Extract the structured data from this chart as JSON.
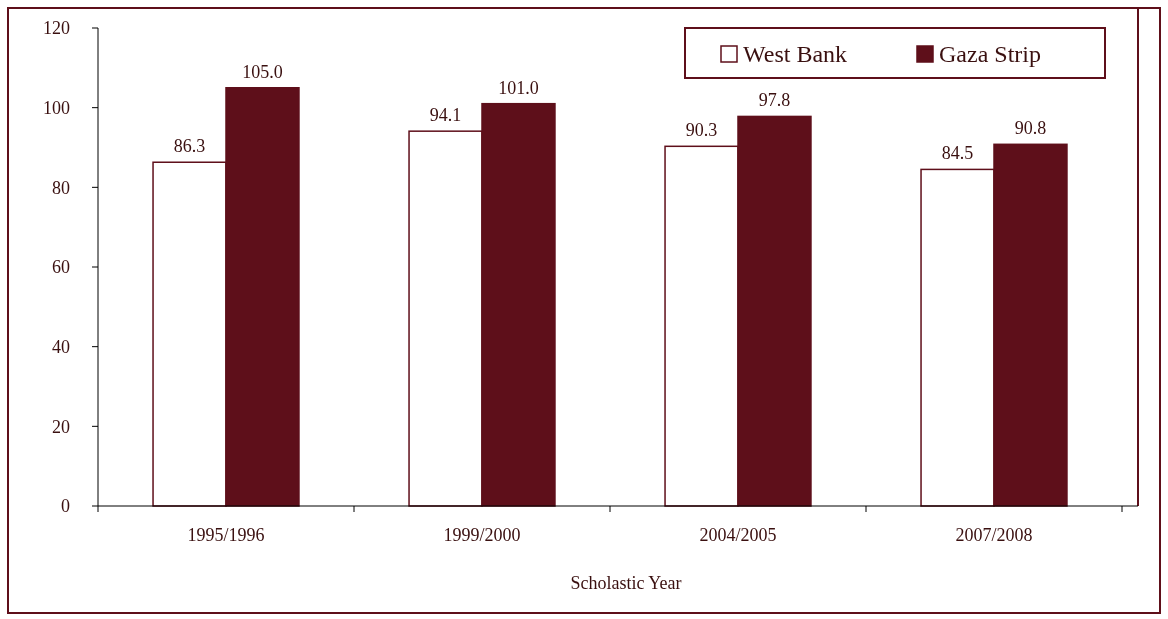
{
  "chart_data": {
    "type": "bar",
    "xlabel": "Scholastic Year",
    "categories": [
      "1995/1996",
      "1999/2000",
      "2004/2005",
      "2007/2008"
    ],
    "series": [
      {
        "name": "West Bank",
        "color": "#ffffff",
        "values": [
          86.3,
          94.1,
          90.3,
          84.5
        ],
        "value_labels": [
          "86.3",
          "94.1",
          "90.3",
          "84.5"
        ]
      },
      {
        "name": "Gaza Strip",
        "color": "#5e0f1a",
        "values": [
          105.0,
          101.0,
          97.8,
          90.8
        ],
        "value_labels": [
          "105.0",
          "101.0",
          "97.8",
          "90.8"
        ]
      }
    ],
    "ylim": [
      0,
      120
    ],
    "yticks": [
      0,
      20,
      40,
      60,
      80,
      100,
      120
    ],
    "legend": "top right",
    "grid": false
  }
}
